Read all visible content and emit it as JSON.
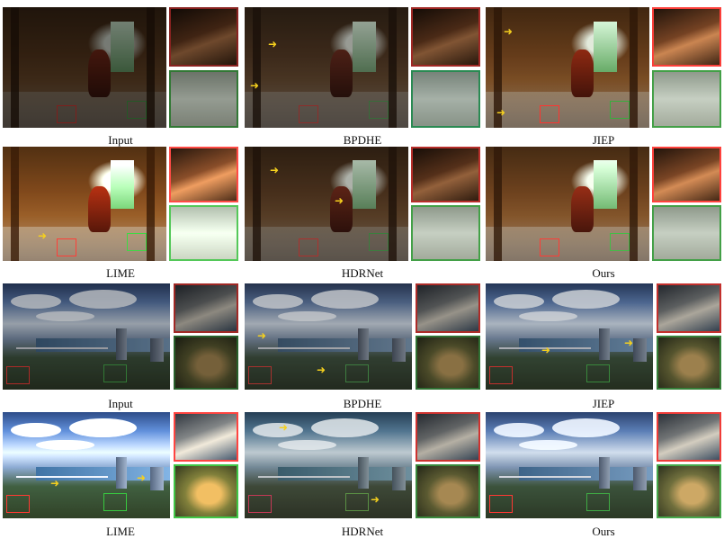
{
  "figure": {
    "captions": {
      "r1c1": "Input",
      "r1c2": "BPDHE",
      "r1c3": "JIEP",
      "r2c1": "LIME",
      "r2c2": "HDRNet",
      "r2c3": "Ours",
      "r3c1": "Input",
      "r3c2": "BPDHE",
      "r3c3": "JIEP",
      "r4c1": "LIME",
      "r4c2": "HDRNet",
      "r4c3": "Ours"
    },
    "colors": {
      "zoom_box_red": "#e53935",
      "zoom_box_green": "#43a047",
      "arrow": "#f5d01e"
    }
  }
}
